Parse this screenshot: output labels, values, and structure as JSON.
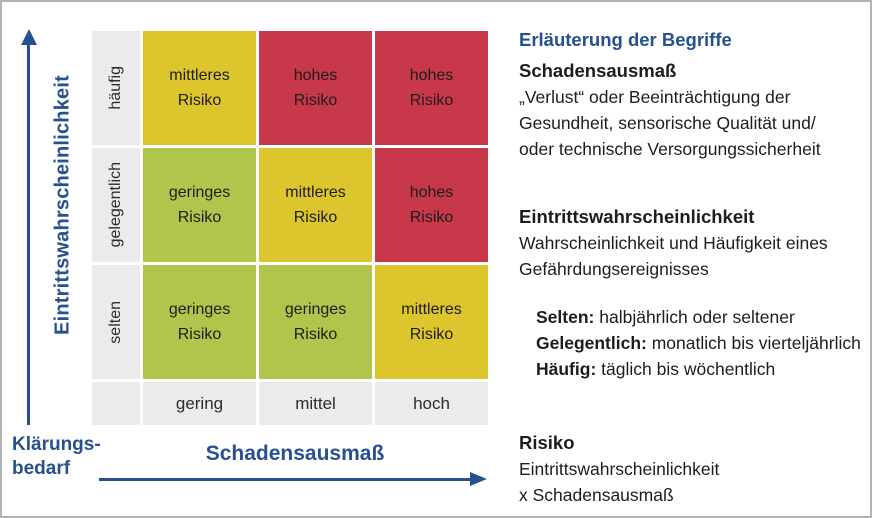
{
  "colors": {
    "accent_blue": "#27518e",
    "risk_red": "#c7384a",
    "risk_yellow": "#ddc52e",
    "risk_green": "#afc54b",
    "label_gray": "#ebebeb"
  },
  "y_axis": {
    "label": "Eintrittswahrscheinlichkeit"
  },
  "x_axis": {
    "label": "Schadensausmaß"
  },
  "origin": {
    "label": "Klärungs-\nbedarf"
  },
  "matrix": {
    "row_labels": [
      "häufig",
      "gelegentlich",
      "selten"
    ],
    "col_labels": [
      "gering",
      "mittel",
      "hoch"
    ],
    "cells": [
      {
        "text": "mittleres\nRisiko",
        "bg": "#ddc52e"
      },
      {
        "text": "hohes\nRisiko",
        "bg": "#c7384a"
      },
      {
        "text": "hohes\nRisiko",
        "bg": "#c7384a"
      },
      {
        "text": "geringes\nRisiko",
        "bg": "#afc54b"
      },
      {
        "text": "mittleres\nRisiko",
        "bg": "#ddc52e"
      },
      {
        "text": "hohes\nRisiko",
        "bg": "#c7384a"
      },
      {
        "text": "geringes\nRisiko",
        "bg": "#afc54b"
      },
      {
        "text": "geringes\nRisiko",
        "bg": "#afc54b"
      },
      {
        "text": "mittleres\nRisiko",
        "bg": "#ddc52e"
      }
    ]
  },
  "legend": {
    "title": "Erläuterung der Begriffe",
    "terms": [
      {
        "heading": "Schadensausmaß",
        "body": "„Verlust“ oder Beeinträchtigung der\nGesundheit, sensorische Qualität und/\noder technische Versorgungssicherheit"
      },
      {
        "heading": "Eintrittswahrscheinlichkeit",
        "body": "Wahrscheinlichkeit und Häufigkeit eines\nGefährdungsereignisses"
      },
      {
        "heading": "Risiko",
        "body": "Eintrittswahrscheinlichkeit\nx Schadensausmaß"
      }
    ],
    "frequency_items": [
      {
        "term": "Selten:",
        "desc": "halbjährlich oder seltener"
      },
      {
        "term": "Gelegentlich:",
        "desc": "monatlich bis vierteljährlich"
      },
      {
        "term": "Häufig:",
        "desc": "täglich bis wöchentlich"
      }
    ]
  }
}
